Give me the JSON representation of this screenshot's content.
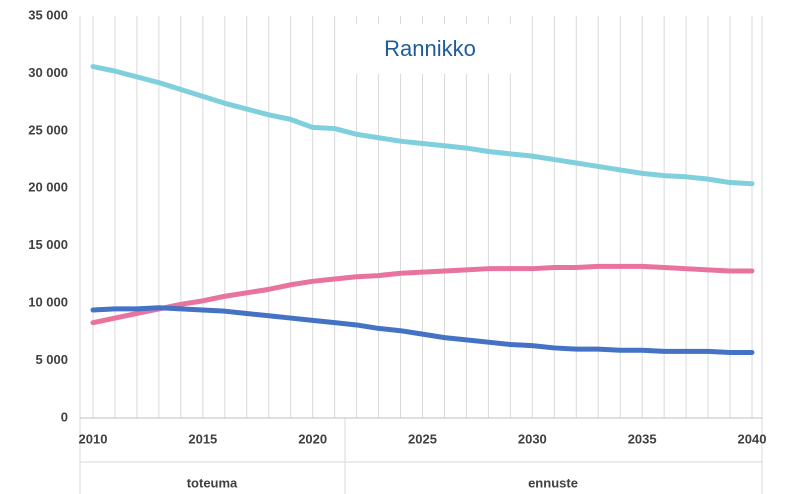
{
  "chart_data": {
    "type": "line",
    "title": "Rannikko",
    "x": [
      2010,
      2011,
      2012,
      2013,
      2014,
      2015,
      2016,
      2017,
      2018,
      2019,
      2020,
      2021,
      2022,
      2023,
      2024,
      2025,
      2026,
      2027,
      2028,
      2029,
      2030,
      2031,
      2032,
      2033,
      2034,
      2035,
      2036,
      2037,
      2038,
      2039,
      2040
    ],
    "series": [
      {
        "color": "#7fcfdc",
        "values": [
          30600,
          30200,
          29700,
          29200,
          28600,
          28000,
          27400,
          26900,
          26400,
          26000,
          25300,
          25200,
          24700,
          24400,
          24100,
          23900,
          23700,
          23500,
          23200,
          23000,
          22800,
          22500,
          22200,
          21900,
          21600,
          21300,
          21100,
          21000,
          20800,
          20500,
          20400
        ]
      },
      {
        "color": "#e8739e",
        "values": [
          8300,
          8700,
          9100,
          9500,
          9900,
          10200,
          10600,
          10900,
          11200,
          11600,
          11900,
          12100,
          12300,
          12400,
          12600,
          12700,
          12800,
          12900,
          13000,
          13000,
          13000,
          13100,
          13100,
          13200,
          13200,
          13200,
          13100,
          13000,
          12900,
          12800,
          12800
        ]
      },
      {
        "color": "#4472c4",
        "values": [
          9400,
          9500,
          9500,
          9600,
          9500,
          9400,
          9300,
          9100,
          8900,
          8700,
          8500,
          8300,
          8100,
          7800,
          7600,
          7300,
          7000,
          6800,
          6600,
          6400,
          6300,
          6100,
          6000,
          6000,
          5900,
          5900,
          5800,
          5800,
          5800,
          5700,
          5700
        ]
      }
    ],
    "xlim": [
      2010,
      2040
    ],
    "xticks": [
      2010,
      2015,
      2020,
      2025,
      2030,
      2035,
      2040
    ],
    "ylim": [
      0,
      35000
    ],
    "yticks": [
      0,
      {
        "value": 5000,
        "label": "5 000"
      },
      {
        "value": 10000,
        "label": "10 000"
      },
      {
        "value": 15000,
        "label": "15 000"
      },
      {
        "value": 20000,
        "label": "20 000"
      },
      {
        "value": 25000,
        "label": "25 000"
      },
      {
        "value": 30000,
        "label": "30 000"
      },
      {
        "value": 35000,
        "label": "35 000"
      }
    ],
    "grid": true,
    "period_labels": [
      "toteuma",
      "ennuste"
    ]
  }
}
